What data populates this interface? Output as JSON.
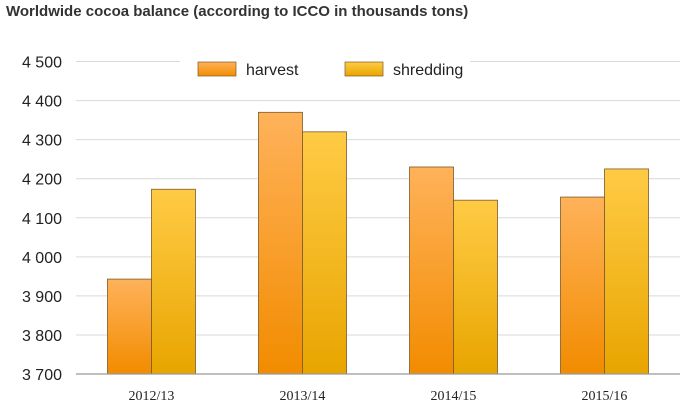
{
  "chart_data": {
    "type": "bar",
    "title": "Worldwide cocoa balance (according to ICCO in thousands tons)",
    "xlabel": "",
    "ylabel": "",
    "categories": [
      "2012/13",
      "2013/14",
      "2014/15",
      "2015/16"
    ],
    "series": [
      {
        "name": "harvest",
        "values": [
          3943,
          4370,
          4230,
          4153
        ],
        "color_top": "#FFB25A",
        "color_bottom": "#F28C00"
      },
      {
        "name": "shredding",
        "values": [
          4173,
          4320,
          4145,
          4225
        ],
        "color_top": "#FFCB45",
        "color_bottom": "#E8A500"
      }
    ],
    "ylim": [
      3700,
      4550
    ],
    "yticks": [
      3700,
      3800,
      3900,
      4000,
      4100,
      4200,
      4300,
      4400,
      4500
    ],
    "ytick_labels": [
      "3 700",
      "3 800",
      "3 900",
      "4 000",
      "4 100",
      "4 200",
      "4 300",
      "4 400",
      "4 500"
    ],
    "grid": true,
    "legend_position": "top-center",
    "colors": {
      "grid": "#d9d9d9",
      "axis": "#999999",
      "bar_stroke": "#7a5a2a"
    }
  }
}
